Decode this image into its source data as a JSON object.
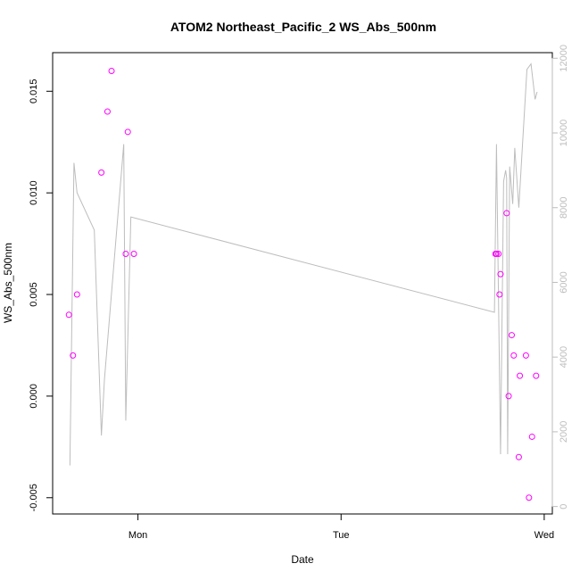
{
  "chart_data": {
    "type": "scatter",
    "title": "ATOM2 Northeast_Pacific_2 WS_Abs_500nm",
    "xlabel": "Date",
    "ylabel": "WS_Abs_500nm",
    "y2label": "",
    "x_unit": "days",
    "x_ticks": [
      {
        "label": "Mon",
        "value": 1.0
      },
      {
        "label": "Tue",
        "value": 2.0
      },
      {
        "label": "Wed",
        "value": 3.0
      }
    ],
    "xlim": [
      0.58,
      3.04
    ],
    "ylim": [
      -0.0058,
      0.0169
    ],
    "y_ticks": [
      -0.005,
      0.0,
      0.005,
      0.01,
      0.015
    ],
    "y_tick_labels": [
      "-0.005",
      "0.000",
      "0.005",
      "0.010",
      "0.015"
    ],
    "y2lim": [
      -200,
      12150
    ],
    "y2_ticks": [
      0,
      2000,
      4000,
      6000,
      8000,
      10000,
      12000
    ],
    "y2_tick_labels": [
      "0",
      "2000",
      "4000",
      "6000",
      "8000",
      "10000",
      "12000"
    ],
    "grid": false,
    "point_color": "#ff00ff",
    "line_color": "#bdbdbd",
    "series": [
      {
        "kind": "points",
        "axis": "left",
        "x": [
          0.66,
          0.68,
          0.7,
          0.82,
          0.85,
          0.87,
          0.94,
          0.95,
          0.98,
          2.76,
          2.765,
          2.775,
          2.78,
          2.785,
          2.815,
          2.825,
          2.84,
          2.85,
          2.875,
          2.88,
          2.91,
          2.925,
          2.94,
          2.96
        ],
        "y": [
          0.004,
          0.002,
          0.005,
          0.011,
          0.014,
          0.016,
          0.007,
          0.013,
          0.007,
          0.007,
          0.007,
          0.007,
          0.005,
          0.006,
          0.009,
          0.0,
          0.003,
          0.002,
          -0.003,
          0.001,
          0.002,
          -0.005,
          -0.002,
          0.001
        ]
      },
      {
        "kind": "line",
        "axis": "right",
        "x": [
          0.665,
          0.685,
          0.7,
          0.785,
          0.82,
          0.835,
          0.93,
          0.94,
          0.965,
          2.755,
          2.765,
          2.785,
          2.8,
          2.81,
          2.815,
          2.82,
          2.83,
          2.845,
          2.855,
          2.875,
          2.89,
          2.915,
          2.935,
          2.955,
          2.965
        ],
        "y": [
          1100,
          9200,
          8400,
          7400,
          1900,
          3400,
          9700,
          2300,
          7750,
          5200,
          9700,
          1400,
          8700,
          9000,
          8800,
          1400,
          9100,
          8100,
          9600,
          8000,
          9400,
          11700,
          11850,
          10900,
          11100
        ]
      }
    ]
  }
}
